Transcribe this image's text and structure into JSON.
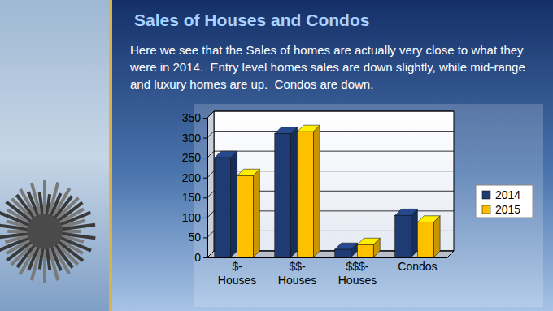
{
  "chart_data": {
    "type": "bar",
    "title": "Sales of Houses and Condos",
    "subtitle": "Here we see that the Sales of homes are actually very close to what they were in 2014.  Entry level homes sales are down slightly, while mid-range and luxury homes are up.  Condos are down.",
    "categories": [
      "$-Houses",
      "$$-Houses",
      "$$$-Houses",
      "Condos"
    ],
    "series": [
      {
        "name": "2014",
        "color": "#1f3b73",
        "values": [
          250,
          310,
          20,
          105
        ]
      },
      {
        "name": "2015",
        "color": "#ffc000",
        "values": [
          205,
          315,
          32,
          88
        ]
      }
    ],
    "ylim": [
      0,
      350
    ],
    "yticks": [
      0,
      50,
      100,
      150,
      200,
      250,
      300,
      350
    ],
    "grid": true,
    "legend": "right"
  }
}
